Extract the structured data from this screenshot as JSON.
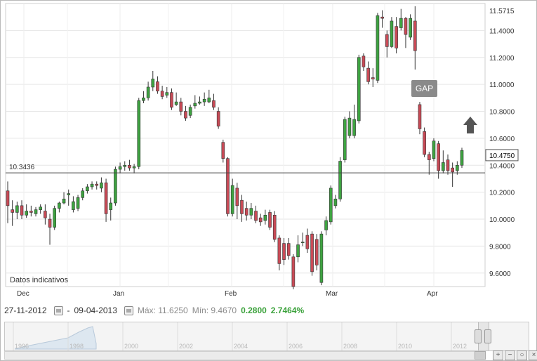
{
  "chart_data": {
    "type": "candlestick",
    "x_axis_labels": [
      "Dec",
      "Jan",
      "Feb",
      "Mar",
      "Apr"
    ],
    "y_ticks": [
      "11.4000",
      "11.2000",
      "11.0000",
      "10.8000",
      "10.6000",
      "10.4000",
      "10.2000",
      "10.0000",
      "9.8000",
      "9.6000"
    ],
    "ylim": [
      9.48,
      11.6
    ],
    "last_price_label": "10.4750",
    "max_label": "11.5715",
    "reference_line_value": 10.3436,
    "reference_line_label": "10.3436",
    "annotation_gap": "GAP",
    "footnote": "Datos indicativos",
    "colors": {
      "up": "#3ea341",
      "down": "#c84a56"
    },
    "candles": [
      [
        10.21,
        10.1,
        10.28,
        9.97
      ],
      [
        10.07,
        10.05,
        10.14,
        9.95
      ],
      [
        10.05,
        10.1,
        10.13,
        10.0
      ],
      [
        10.1,
        10.03,
        10.14,
        10.0
      ],
      [
        10.03,
        10.06,
        10.11,
        10.01
      ],
      [
        10.06,
        10.05,
        10.1,
        10.02
      ],
      [
        10.04,
        10.07,
        10.09,
        10.02
      ],
      [
        10.07,
        10.09,
        10.11,
        10.04
      ],
      [
        10.06,
        10.01,
        10.11,
        9.96
      ],
      [
        10.0,
        9.94,
        10.04,
        9.81
      ],
      [
        9.94,
        10.08,
        10.1,
        9.92
      ],
      [
        10.08,
        10.12,
        10.13,
        10.05
      ],
      [
        10.12,
        10.15,
        10.2,
        10.11
      ],
      [
        10.18,
        10.19,
        10.22,
        10.1
      ],
      [
        10.07,
        10.13,
        10.17,
        10.05
      ],
      [
        10.08,
        10.16,
        10.18,
        10.06
      ],
      [
        10.16,
        10.21,
        10.23,
        10.14
      ],
      [
        10.21,
        10.24,
        10.26,
        10.19
      ],
      [
        10.24,
        10.26,
        10.28,
        10.22
      ],
      [
        10.26,
        10.25,
        10.28,
        10.22
      ],
      [
        10.23,
        10.27,
        10.31,
        10.2
      ],
      [
        10.27,
        10.04,
        10.3,
        9.98
      ],
      [
        10.07,
        10.12,
        10.16,
        9.99
      ],
      [
        10.12,
        10.37,
        10.39,
        10.1
      ],
      [
        10.37,
        10.39,
        10.42,
        10.34
      ],
      [
        10.39,
        10.4,
        10.43,
        10.36
      ],
      [
        10.4,
        10.38,
        10.44,
        10.36
      ],
      [
        10.38,
        10.39,
        10.41,
        10.34
      ],
      [
        10.39,
        10.88,
        10.9,
        10.37
      ],
      [
        10.88,
        10.9,
        10.95,
        10.86
      ],
      [
        10.9,
        10.98,
        11.02,
        10.88
      ],
      [
        10.98,
        11.04,
        11.1,
        10.95
      ],
      [
        11.02,
        10.95,
        11.06,
        10.93
      ],
      [
        10.95,
        10.91,
        10.99,
        10.89
      ],
      [
        10.92,
        10.94,
        10.98,
        10.9
      ],
      [
        10.94,
        10.83,
        10.97,
        10.81
      ],
      [
        10.85,
        10.87,
        10.94,
        10.84
      ],
      [
        10.87,
        10.8,
        10.9,
        10.77
      ],
      [
        10.8,
        10.75,
        10.84,
        10.73
      ],
      [
        10.77,
        10.83,
        10.85,
        10.75
      ],
      [
        10.84,
        10.86,
        10.92,
        10.82
      ],
      [
        10.86,
        10.87,
        10.91,
        10.85
      ],
      [
        10.87,
        10.89,
        10.94,
        10.84
      ],
      [
        10.87,
        10.9,
        10.96,
        10.86
      ],
      [
        10.88,
        10.83,
        10.93,
        10.81
      ],
      [
        10.8,
        10.69,
        10.83,
        10.67
      ],
      [
        10.57,
        10.45,
        10.59,
        10.42
      ],
      [
        10.45,
        10.04,
        10.46,
        10.02
      ],
      [
        10.04,
        10.25,
        10.3,
        10.02
      ],
      [
        10.23,
        10.1,
        10.27,
        10.0
      ],
      [
        10.14,
        10.04,
        10.18,
        9.98
      ],
      [
        10.08,
        10.03,
        10.13,
        9.99
      ],
      [
        10.03,
        10.08,
        10.12,
        10.0
      ],
      [
        10.06,
        9.99,
        10.1,
        9.97
      ],
      [
        10.01,
        9.98,
        10.04,
        9.95
      ],
      [
        9.99,
        10.03,
        10.07,
        9.96
      ],
      [
        10.05,
        9.94,
        10.07,
        9.92
      ],
      [
        10.03,
        9.85,
        10.06,
        9.83
      ],
      [
        9.86,
        9.67,
        9.88,
        9.62
      ],
      [
        9.82,
        9.7,
        9.86,
        9.66
      ],
      [
        9.82,
        9.73,
        9.86,
        9.7
      ],
      [
        9.72,
        9.5,
        9.74,
        9.48
      ],
      [
        9.72,
        9.81,
        9.88,
        9.68
      ],
      [
        9.83,
        9.83,
        9.9,
        9.8
      ],
      [
        9.88,
        9.78,
        9.93,
        9.75
      ],
      [
        9.89,
        9.61,
        9.91,
        9.58
      ],
      [
        9.85,
        9.66,
        9.89,
        9.62
      ],
      [
        9.53,
        9.89,
        9.91,
        9.51
      ],
      [
        9.92,
        9.99,
        10.02,
        9.88
      ],
      [
        9.98,
        10.23,
        10.25,
        9.96
      ],
      [
        10.1,
        10.15,
        10.18,
        10.08
      ],
      [
        10.15,
        10.43,
        10.46,
        10.13
      ],
      [
        10.44,
        10.74,
        10.76,
        10.42
      ],
      [
        10.62,
        10.75,
        10.8,
        10.6
      ],
      [
        10.62,
        10.74,
        10.85,
        10.6
      ],
      [
        10.73,
        11.2,
        11.22,
        10.71
      ],
      [
        11.21,
        11.13,
        11.23,
        11.1
      ],
      [
        11.12,
        11.02,
        11.17,
        11.0
      ],
      [
        11.05,
        11.04,
        11.12,
        10.98
      ],
      [
        11.03,
        11.51,
        11.53,
        11.01
      ],
      [
        11.5,
        11.49,
        11.55,
        11.42
      ],
      [
        11.37,
        11.28,
        11.4,
        11.2
      ],
      [
        11.28,
        11.47,
        11.5,
        11.27
      ],
      [
        11.43,
        11.27,
        11.5,
        11.23
      ],
      [
        11.42,
        11.49,
        11.56,
        11.4
      ],
      [
        11.49,
        11.37,
        11.5,
        11.27
      ],
      [
        11.35,
        11.49,
        11.52,
        11.33
      ],
      [
        11.47,
        11.25,
        11.58,
        11.11
      ],
      [
        10.85,
        10.67,
        10.87,
        10.63
      ],
      [
        10.65,
        10.48,
        10.68,
        10.46
      ],
      [
        10.48,
        10.44,
        10.5,
        10.33
      ],
      [
        10.45,
        10.58,
        10.6,
        10.43
      ],
      [
        10.56,
        10.36,
        10.58,
        10.3
      ],
      [
        10.36,
        10.42,
        10.51,
        10.34
      ],
      [
        10.44,
        10.36,
        10.48,
        10.33
      ],
      [
        10.38,
        10.35,
        10.42,
        10.24
      ],
      [
        10.36,
        10.4,
        10.43,
        10.33
      ],
      [
        10.4,
        10.51,
        10.53,
        10.38
      ]
    ]
  },
  "info": {
    "date_from": "27-11-2012",
    "separator": "-",
    "date_to": "09-04-2013",
    "max_label": "Máx: 11.6250",
    "min_label": "Mín: 9.4670",
    "change": "0.2800",
    "change_pct": "2.7464%"
  },
  "navigator": {
    "years": [
      "1996",
      "1998",
      "2000",
      "2002",
      "2004",
      "2006",
      "2008",
      "2010",
      "2012"
    ]
  },
  "tools": {
    "zoom_in": "+",
    "zoom_out": "−",
    "reset": "○",
    "fullscreen": "×"
  }
}
